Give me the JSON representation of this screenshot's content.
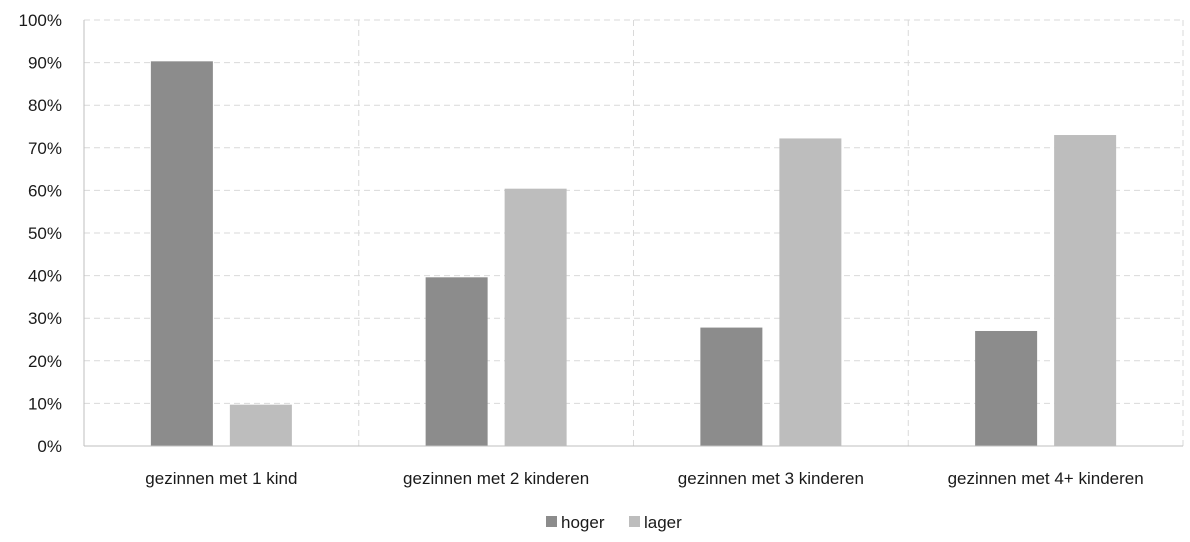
{
  "chart_data": {
    "type": "bar",
    "categories": [
      "gezinnen met 1 kind",
      "gezinnen met 2 kinderen",
      "gezinnen met 3 kinderen",
      "gezinnen met 4+ kinderen"
    ],
    "series": [
      {
        "name": "hoger",
        "color": "#8c8c8c",
        "values": [
          90.3,
          39.6,
          27.8,
          27.0
        ]
      },
      {
        "name": "lager",
        "color": "#bdbdbd",
        "values": [
          9.7,
          60.4,
          72.2,
          73.0
        ]
      }
    ],
    "yticks": [
      "0%",
      "10%",
      "20%",
      "30%",
      "40%",
      "50%",
      "60%",
      "70%",
      "80%",
      "90%",
      "100%"
    ],
    "ylim": [
      0,
      100
    ],
    "grid": true,
    "legend": "bottom-center"
  }
}
